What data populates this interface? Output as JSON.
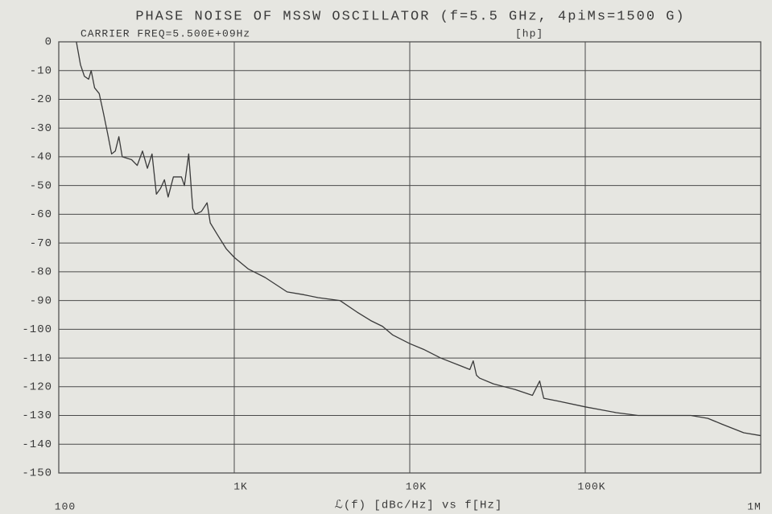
{
  "chart_data": {
    "type": "line",
    "title": "PHASE NOISE OF MSSW OSCILLATOR (f=5.5 GHz, 4piMs=1500 G)",
    "subtitle": "CARRIER FREQ=5.500E+09Hz",
    "annotation": "[hp]",
    "x_label": "ℒ(f) [dBc/Hz] vs f[Hz]",
    "x_scale": "log",
    "grid": true,
    "color": "#3a3a3a",
    "xlim": [
      100,
      1000000
    ],
    "ylim": [
      -150,
      0
    ],
    "xticks": [
      100,
      {
        "value": 1000,
        "label": "1K"
      },
      {
        "value": 10000,
        "label": "10K"
      },
      {
        "value": 100000,
        "label": "100K"
      },
      {
        "value": 1000000,
        "label": "1M"
      }
    ],
    "yticks": [
      0,
      -10,
      -20,
      -30,
      -40,
      -50,
      -60,
      -70,
      -80,
      -90,
      -100,
      -110,
      -120,
      -130,
      -140,
      -150
    ],
    "x": [
      126,
      133,
      140,
      148,
      153,
      160,
      170,
      180,
      190,
      200,
      210,
      220,
      230,
      260,
      280,
      300,
      320,
      340,
      360,
      380,
      400,
      420,
      450,
      500,
      520,
      550,
      580,
      600,
      650,
      700,
      730,
      800,
      900,
      1000,
      1200,
      1500,
      2000,
      2500,
      3000,
      4000,
      5000,
      6000,
      7000,
      8000,
      10000,
      12000,
      15000,
      20000,
      22000,
      23000,
      24000,
      25000,
      30000,
      40000,
      50000,
      55000,
      58000,
      70000,
      100000,
      150000,
      200000,
      300000,
      400000,
      500000,
      600000,
      800000,
      1000000
    ],
    "values": [
      0,
      -8,
      -12,
      -13,
      -10,
      -16,
      -18,
      -25,
      -32,
      -39,
      -38,
      -33,
      -40,
      -41,
      -43,
      -38,
      -44,
      -39,
      -53,
      -51,
      -48,
      -54,
      -47,
      -47,
      -50,
      -39,
      -58,
      -60,
      -59,
      -56,
      -63,
      -67,
      -72,
      -75,
      -79,
      -82,
      -87,
      -88,
      -89,
      -90,
      -94,
      -97,
      -99,
      -102,
      -105,
      -107,
      -110,
      -113,
      -114,
      -111,
      -116,
      -117,
      -119,
      -121,
      -123,
      -118,
      -124,
      -125,
      -127,
      -129,
      -130,
      -130,
      -130,
      -131,
      -133,
      -136,
      -137
    ]
  }
}
